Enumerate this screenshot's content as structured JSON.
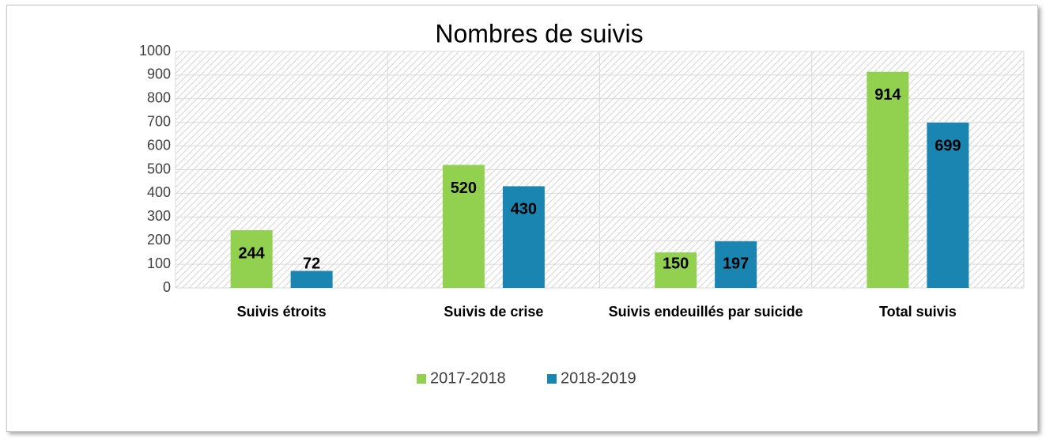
{
  "chart_data": {
    "type": "bar",
    "title": "Nombres de suivis",
    "categories": [
      "Suivis étroits",
      "Suivis de crise",
      "Suivis endeuillés par suicide",
      "Total suivis"
    ],
    "series": [
      {
        "name": "2017-2018",
        "color": "#92d050",
        "values": [
          244,
          520,
          150,
          914
        ]
      },
      {
        "name": "2018-2019",
        "color": "#1a85b0",
        "values": [
          72,
          430,
          197,
          699
        ]
      }
    ],
    "ylim": [
      0,
      1000
    ],
    "yticks": [
      0,
      100,
      200,
      300,
      400,
      500,
      600,
      700,
      800,
      900,
      1000
    ],
    "grid": true,
    "legend": "bottom"
  }
}
